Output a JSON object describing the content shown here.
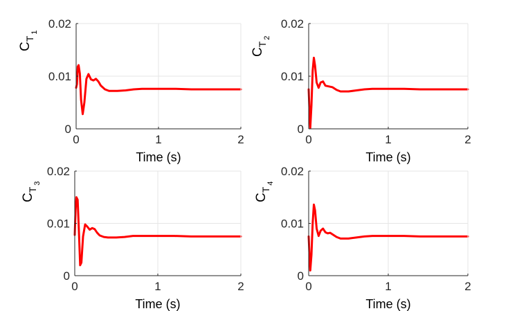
{
  "figure": {
    "background": "#ffffff",
    "axis_color": "#262626",
    "grid_color": "#e6e6e6",
    "line_color": "#ff0000"
  },
  "chart_data": [
    {
      "type": "line",
      "ylabel_main": "C",
      "ylabel_sub": "T",
      "ylabel_index": "1",
      "xlabel": "Time (s)",
      "xlim": [
        0,
        2
      ],
      "ylim": [
        0,
        0.02
      ],
      "xticks": [
        "0",
        "1",
        "2"
      ],
      "yticks": [
        "0",
        "0.01",
        "0.02"
      ],
      "grid": true,
      "series": [
        {
          "color": "#ff0000",
          "x": [
            0,
            0.01,
            0.02,
            0.03,
            0.045,
            0.06,
            0.08,
            0.1,
            0.125,
            0.15,
            0.18,
            0.21,
            0.24,
            0.27,
            0.3,
            0.35,
            0.4,
            0.5,
            0.6,
            0.7,
            0.8,
            0.9,
            1.0,
            1.2,
            1.4,
            1.6,
            1.8,
            2.0
          ],
          "y": [
            0.0078,
            0.0085,
            0.0118,
            0.0121,
            0.0105,
            0.0055,
            0.0028,
            0.005,
            0.0095,
            0.0104,
            0.0094,
            0.0092,
            0.0095,
            0.009,
            0.0082,
            0.0075,
            0.0072,
            0.0072,
            0.0073,
            0.0075,
            0.0076,
            0.0076,
            0.0076,
            0.0076,
            0.0075,
            0.0075,
            0.0075,
            0.0075
          ]
        }
      ]
    },
    {
      "type": "line",
      "ylabel_main": "C",
      "ylabel_sub": "T",
      "ylabel_index": "2",
      "xlabel": "Time (s)",
      "xlim": [
        0,
        2
      ],
      "ylim": [
        0,
        0.02
      ],
      "xticks": [
        "0",
        "1",
        "2"
      ],
      "yticks": [
        "0",
        "0.01",
        "0.02"
      ],
      "grid": true,
      "series": [
        {
          "color": "#ff0000",
          "x": [
            0,
            0.01,
            0.02,
            0.035,
            0.05,
            0.065,
            0.08,
            0.1,
            0.125,
            0.15,
            0.18,
            0.21,
            0.24,
            0.27,
            0.3,
            0.35,
            0.4,
            0.5,
            0.6,
            0.7,
            0.8,
            0.9,
            1.0,
            1.2,
            1.4,
            1.6,
            1.8,
            2.0
          ],
          "y": [
            0.0075,
            0.0035,
            0.0002,
            0.0045,
            0.011,
            0.0135,
            0.012,
            0.0088,
            0.0078,
            0.0088,
            0.009,
            0.0082,
            0.0081,
            0.008,
            0.0079,
            0.0074,
            0.0071,
            0.0071,
            0.0073,
            0.0075,
            0.0076,
            0.0076,
            0.0076,
            0.0076,
            0.0075,
            0.0075,
            0.0075,
            0.0075
          ]
        }
      ]
    },
    {
      "type": "line",
      "ylabel_main": "C",
      "ylabel_sub": "T",
      "ylabel_index": "3",
      "xlabel": "Time (s)",
      "xlim": [
        0,
        2
      ],
      "ylim": [
        0,
        0.02
      ],
      "xticks": [
        "0",
        "1",
        "2"
      ],
      "yticks": [
        "0",
        "0.01",
        "0.02"
      ],
      "grid": true,
      "series": [
        {
          "color": "#ff0000",
          "x": [
            0,
            0.01,
            0.02,
            0.035,
            0.05,
            0.065,
            0.08,
            0.1,
            0.125,
            0.15,
            0.18,
            0.21,
            0.24,
            0.27,
            0.3,
            0.35,
            0.4,
            0.5,
            0.6,
            0.7,
            0.8,
            0.9,
            1.0,
            1.2,
            1.4,
            1.6,
            1.8,
            2.0
          ],
          "y": [
            0.0078,
            0.0125,
            0.015,
            0.0145,
            0.0085,
            0.002,
            0.0025,
            0.0075,
            0.0098,
            0.0094,
            0.0088,
            0.0091,
            0.0089,
            0.0082,
            0.0077,
            0.0074,
            0.0073,
            0.0073,
            0.0074,
            0.0076,
            0.0076,
            0.0076,
            0.0076,
            0.0076,
            0.0075,
            0.0075,
            0.0075,
            0.0075
          ]
        }
      ]
    },
    {
      "type": "line",
      "ylabel_main": "C",
      "ylabel_sub": "T",
      "ylabel_index": "4",
      "xlabel": "Time (s)",
      "xlim": [
        0,
        2
      ],
      "ylim": [
        0,
        0.02
      ],
      "xticks": [
        "0",
        "1",
        "2"
      ],
      "yticks": [
        "0",
        "0.01",
        "0.02"
      ],
      "grid": true,
      "series": [
        {
          "color": "#ff0000",
          "x": [
            0,
            0.01,
            0.02,
            0.035,
            0.05,
            0.065,
            0.08,
            0.1,
            0.125,
            0.15,
            0.18,
            0.21,
            0.24,
            0.27,
            0.3,
            0.35,
            0.4,
            0.5,
            0.6,
            0.7,
            0.8,
            0.9,
            1.0,
            1.2,
            1.4,
            1.6,
            1.8,
            2.0
          ],
          "y": [
            0.0075,
            0.004,
            0.001,
            0.004,
            0.01,
            0.0136,
            0.0125,
            0.009,
            0.0076,
            0.0086,
            0.009,
            0.0083,
            0.0081,
            0.0082,
            0.0079,
            0.0074,
            0.0071,
            0.0071,
            0.0073,
            0.0075,
            0.0076,
            0.0076,
            0.0076,
            0.0076,
            0.0075,
            0.0075,
            0.0075,
            0.0075
          ]
        }
      ]
    }
  ]
}
